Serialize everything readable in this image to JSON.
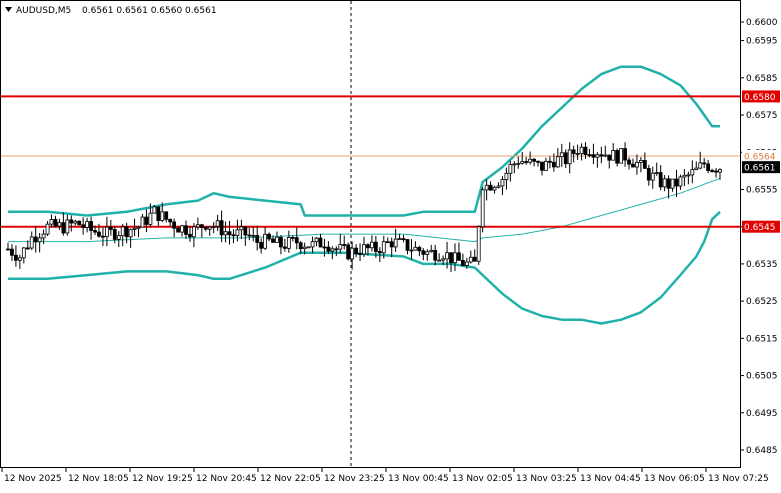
{
  "header": {
    "symbol": "AUDUSD,M5",
    "ohlc": "0.6561 0.6561 0.6560 0.6561"
  },
  "colors": {
    "background": "#ffffff",
    "candle": "#000000",
    "bollinger": "#20b2aa",
    "level_red": "#e00000",
    "bid_line": "#e8a070",
    "bid_label_text": "#e07a40"
  },
  "chart_data": {
    "type": "candlestick",
    "title": "AUDUSD,M5",
    "ylim": [
      0.6479,
      0.6612
    ],
    "y_ticks": [
      "0.6600",
      "0.6595",
      "0.6585",
      "0.6575",
      "0.6565",
      "0.6555",
      "0.6545",
      "0.6535",
      "0.6525",
      "0.6515",
      "0.6505",
      "0.6495",
      "0.6485"
    ],
    "x_ticks": [
      "12 Nov 2025",
      "12 Nov 18:05",
      "12 Nov 19:25",
      "12 Nov 20:45",
      "12 Nov 22:05",
      "12 Nov 23:25",
      "13 Nov 00:45",
      "13 Nov 02:05",
      "13 Nov 03:25",
      "13 Nov 04:45",
      "13 Nov 06:05",
      "13 Nov 07:25"
    ],
    "levels": [
      {
        "price": 0.658,
        "label": "0.6580"
      },
      {
        "price": 0.6545,
        "label": "0.6545"
      }
    ],
    "bid_line": {
      "price": 0.6564,
      "label": "0.6564"
    },
    "current_price": {
      "price": 0.6561,
      "label": "0.6561"
    },
    "session_separator": "12 Nov 23:25",
    "close_path": [
      [
        0,
        0.6539
      ],
      [
        6,
        0.6537
      ],
      [
        12,
        0.6542
      ],
      [
        20,
        0.6545
      ],
      [
        28,
        0.6545
      ],
      [
        35,
        0.6546
      ],
      [
        42,
        0.6544
      ],
      [
        50,
        0.6543
      ],
      [
        58,
        0.6544
      ],
      [
        66,
        0.6545
      ],
      [
        74,
        0.6549
      ],
      [
        80,
        0.6547
      ],
      [
        86,
        0.6545
      ],
      [
        94,
        0.6544
      ],
      [
        100,
        0.6546
      ],
      [
        106,
        0.6545
      ],
      [
        112,
        0.6543
      ],
      [
        120,
        0.6543
      ],
      [
        126,
        0.6541
      ],
      [
        132,
        0.6541
      ],
      [
        138,
        0.654
      ],
      [
        146,
        0.6541
      ],
      [
        154,
        0.654
      ],
      [
        160,
        0.6541
      ],
      [
        166,
        0.6539
      ],
      [
        172,
        0.6538
      ],
      [
        178,
        0.6539
      ],
      [
        186,
        0.6539
      ],
      [
        194,
        0.6541
      ],
      [
        200,
        0.654
      ],
      [
        206,
        0.6539
      ],
      [
        212,
        0.6538
      ],
      [
        220,
        0.6538
      ],
      [
        226,
        0.6536
      ],
      [
        232,
        0.6535
      ],
      [
        237,
        0.6535
      ],
      [
        239,
        0.6557
      ],
      [
        242,
        0.6556
      ],
      [
        246,
        0.6557
      ],
      [
        250,
        0.6558
      ],
      [
        254,
        0.6561
      ],
      [
        258,
        0.6563
      ],
      [
        264,
        0.6562
      ],
      [
        270,
        0.6561
      ],
      [
        276,
        0.6563
      ],
      [
        282,
        0.6563
      ],
      [
        288,
        0.6566
      ],
      [
        294,
        0.6566
      ],
      [
        300,
        0.6565
      ],
      [
        306,
        0.6564
      ],
      [
        312,
        0.6564
      ],
      [
        318,
        0.6562
      ],
      [
        324,
        0.6559
      ],
      [
        330,
        0.6557
      ],
      [
        336,
        0.6556
      ],
      [
        342,
        0.6558
      ],
      [
        348,
        0.656
      ],
      [
        352,
        0.6562
      ],
      [
        356,
        0.6561
      ],
      [
        360,
        0.6561
      ]
    ],
    "bollinger_upper": [
      [
        0,
        0.6549
      ],
      [
        20,
        0.6549
      ],
      [
        40,
        0.6548
      ],
      [
        60,
        0.6549
      ],
      [
        80,
        0.6551
      ],
      [
        96,
        0.6552
      ],
      [
        104,
        0.6554
      ],
      [
        112,
        0.6553
      ],
      [
        130,
        0.6552
      ],
      [
        148,
        0.6551
      ],
      [
        150,
        0.6548
      ],
      [
        170,
        0.6548
      ],
      [
        200,
        0.6548
      ],
      [
        210,
        0.6549
      ],
      [
        224,
        0.6549
      ],
      [
        236,
        0.6549
      ],
      [
        240,
        0.6557
      ],
      [
        250,
        0.6561
      ],
      [
        260,
        0.6566
      ],
      [
        270,
        0.6572
      ],
      [
        280,
        0.6577
      ],
      [
        290,
        0.6582
      ],
      [
        300,
        0.6586
      ],
      [
        310,
        0.6588
      ],
      [
        320,
        0.6588
      ],
      [
        330,
        0.6586
      ],
      [
        340,
        0.6583
      ],
      [
        348,
        0.6578
      ],
      [
        352,
        0.6575
      ],
      [
        356,
        0.6572
      ],
      [
        360,
        0.6572
      ]
    ],
    "bollinger_middle": [
      [
        0,
        0.6541
      ],
      [
        40,
        0.6541
      ],
      [
        80,
        0.6542
      ],
      [
        120,
        0.6542
      ],
      [
        160,
        0.6543
      ],
      [
        200,
        0.6543
      ],
      [
        236,
        0.6541
      ],
      [
        240,
        0.6542
      ],
      [
        260,
        0.6543
      ],
      [
        280,
        0.6545
      ],
      [
        300,
        0.6548
      ],
      [
        320,
        0.6551
      ],
      [
        340,
        0.6554
      ],
      [
        360,
        0.6558
      ]
    ],
    "bollinger_lower": [
      [
        0,
        0.6531
      ],
      [
        20,
        0.6531
      ],
      [
        40,
        0.6532
      ],
      [
        60,
        0.6533
      ],
      [
        80,
        0.6533
      ],
      [
        96,
        0.6532
      ],
      [
        104,
        0.6531
      ],
      [
        112,
        0.6531
      ],
      [
        130,
        0.6534
      ],
      [
        148,
        0.6538
      ],
      [
        152,
        0.6538
      ],
      [
        170,
        0.6538
      ],
      [
        200,
        0.6537
      ],
      [
        210,
        0.6535
      ],
      [
        224,
        0.6535
      ],
      [
        236,
        0.6534
      ],
      [
        240,
        0.6532
      ],
      [
        250,
        0.6527
      ],
      [
        260,
        0.6523
      ],
      [
        270,
        0.6521
      ],
      [
        280,
        0.652
      ],
      [
        290,
        0.652
      ],
      [
        300,
        0.6519
      ],
      [
        310,
        0.652
      ],
      [
        320,
        0.6522
      ],
      [
        330,
        0.6526
      ],
      [
        340,
        0.6532
      ],
      [
        348,
        0.6537
      ],
      [
        352,
        0.6541
      ],
      [
        356,
        0.6547
      ],
      [
        360,
        0.6549
      ]
    ]
  }
}
